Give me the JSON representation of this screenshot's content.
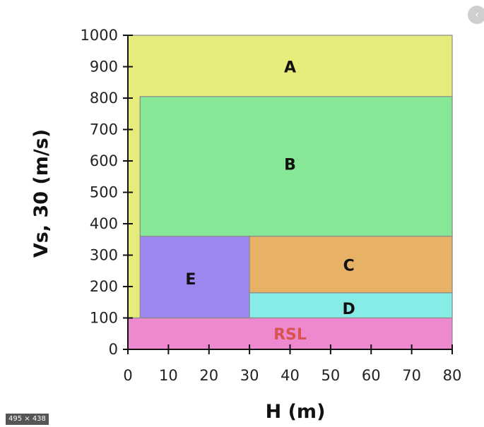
{
  "chart_data": {
    "type": "area",
    "xlabel": "H (m)",
    "ylabel": "Vs, 30 (m/s)",
    "xlim": [
      0,
      80
    ],
    "ylim": [
      0,
      1000
    ],
    "xticks": [
      "0",
      "10",
      "20",
      "30",
      "40",
      "50",
      "60",
      "70",
      "80"
    ],
    "yticks": [
      "0",
      "100",
      "200",
      "300",
      "400",
      "500",
      "600",
      "700",
      "800",
      "900",
      "1000"
    ],
    "zones": [
      {
        "label": "A",
        "h": [
          0,
          80
        ],
        "vs": [
          100,
          1000
        ],
        "color": "#e6ec7c"
      },
      {
        "label": "B",
        "h": [
          3,
          80
        ],
        "vs": [
          360,
          805
        ],
        "color": "#86e896"
      },
      {
        "label": "E",
        "h": [
          3,
          30
        ],
        "vs": [
          100,
          360
        ],
        "color": "#9b87ee"
      },
      {
        "label": "C",
        "h": [
          30,
          80
        ],
        "vs": [
          180,
          360
        ],
        "color": "#e7b266"
      },
      {
        "label": "D",
        "h": [
          30,
          80
        ],
        "vs": [
          100,
          180
        ],
        "color": "#88ece6"
      },
      {
        "label": "RSL",
        "h": [
          0,
          80
        ],
        "vs": [
          0,
          100
        ],
        "color": "#ee88cf"
      }
    ]
  },
  "image_size_badge": "495 × 438",
  "corner_icon": "chevron-left-icon"
}
